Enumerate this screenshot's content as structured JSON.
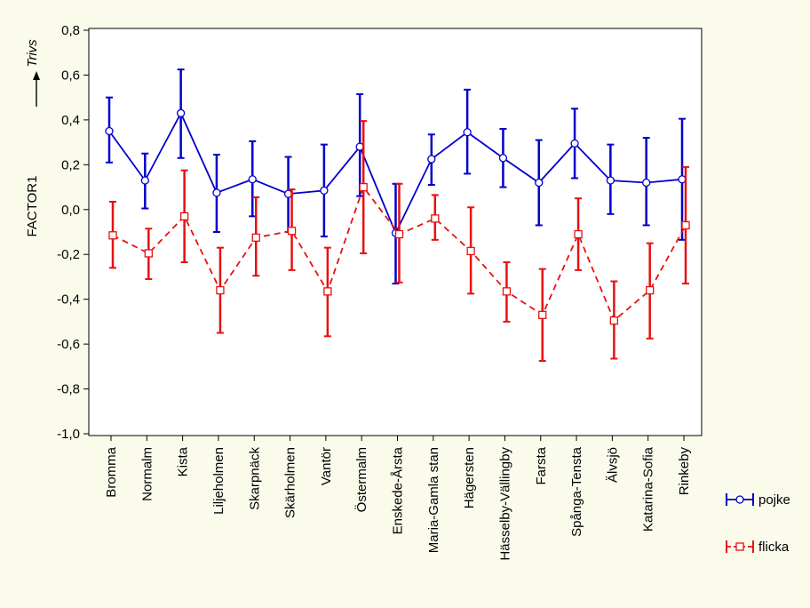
{
  "chart_data": {
    "type": "line",
    "ylabel": "FACTOR1",
    "annotation": "Trivs",
    "ylim": [
      -1.0,
      0.8
    ],
    "yticks": [
      "-1,0",
      "-0,8",
      "-0,6",
      "-0,4",
      "-0,2",
      "0,0",
      "0,2",
      "0,4",
      "0,6",
      "0,8"
    ],
    "ytick_values": [
      -1.0,
      -0.8,
      -0.6,
      -0.4,
      -0.2,
      0.0,
      0.2,
      0.4,
      0.6,
      0.8
    ],
    "grid": false,
    "legend_position": "bottom-right",
    "categories": [
      "Bromma",
      "Normalm",
      "Kista",
      "Liljeholmen",
      "Skarpnäck",
      "Skärholmen",
      "Vantör",
      "Östermalm",
      "Enskede-Årsta",
      "Maria-Gamla stan",
      "Hägersten",
      "Hässelby-Vällingby",
      "Farsta",
      "Spånga-Tensta",
      "Älvsjö",
      "Katarina-Sofia",
      "Rinkeby"
    ],
    "series": [
      {
        "name": "pojke",
        "color": "#0000cc",
        "marker": "circle",
        "line": "solid",
        "values": [
          0.35,
          0.13,
          0.43,
          0.075,
          0.135,
          0.07,
          0.085,
          0.28,
          -0.105,
          0.225,
          0.345,
          0.23,
          0.12,
          0.295,
          0.13,
          0.12,
          0.135
        ],
        "lower": [
          0.21,
          0.005,
          0.23,
          -0.1,
          -0.03,
          -0.1,
          -0.12,
          0.06,
          -0.33,
          0.11,
          0.16,
          0.1,
          -0.07,
          0.14,
          -0.02,
          -0.07,
          -0.135
        ],
        "upper": [
          0.5,
          0.25,
          0.625,
          0.245,
          0.305,
          0.235,
          0.29,
          0.515,
          0.115,
          0.335,
          0.535,
          0.36,
          0.31,
          0.45,
          0.29,
          0.32,
          0.405
        ]
      },
      {
        "name": "flicka",
        "color": "#e81010",
        "marker": "square",
        "line": "dashed",
        "values": [
          -0.115,
          -0.195,
          -0.03,
          -0.36,
          -0.125,
          -0.095,
          -0.365,
          0.1,
          -0.11,
          -0.04,
          -0.185,
          -0.365,
          -0.47,
          -0.11,
          -0.495,
          -0.36,
          -0.07
        ],
        "lower": [
          -0.26,
          -0.31,
          -0.235,
          -0.55,
          -0.295,
          -0.27,
          -0.565,
          -0.195,
          -0.325,
          -0.135,
          -0.375,
          -0.5,
          -0.675,
          -0.27,
          -0.665,
          -0.575,
          -0.33
        ],
        "upper": [
          0.035,
          -0.085,
          0.175,
          -0.17,
          0.055,
          0.09,
          -0.17,
          0.395,
          0.115,
          0.065,
          0.01,
          -0.235,
          -0.265,
          0.05,
          -0.32,
          -0.15,
          0.19
        ]
      }
    ]
  }
}
